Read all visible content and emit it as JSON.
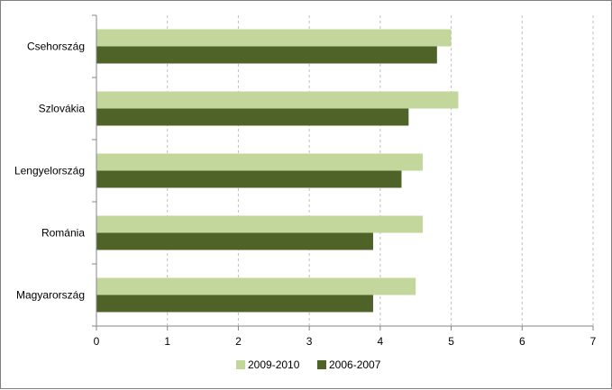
{
  "chart_data": {
    "type": "bar",
    "orientation": "horizontal",
    "categories": [
      "Csehország",
      "Szlovákia",
      "Lengyelország",
      "Románia",
      "Magyarország"
    ],
    "series": [
      {
        "name": "2009-2010",
        "color": "#c3d69b",
        "values": [
          5.0,
          5.1,
          4.6,
          4.6,
          4.5
        ]
      },
      {
        "name": "2006-2007",
        "color": "#4f6228",
        "values": [
          4.8,
          4.4,
          4.3,
          3.9,
          3.9
        ]
      }
    ],
    "xlim": [
      0,
      7
    ],
    "xticks": [
      "0",
      "1",
      "2",
      "3",
      "4",
      "5",
      "6",
      "7"
    ],
    "grid": "vertical-dashed",
    "legend_position": "bottom"
  }
}
